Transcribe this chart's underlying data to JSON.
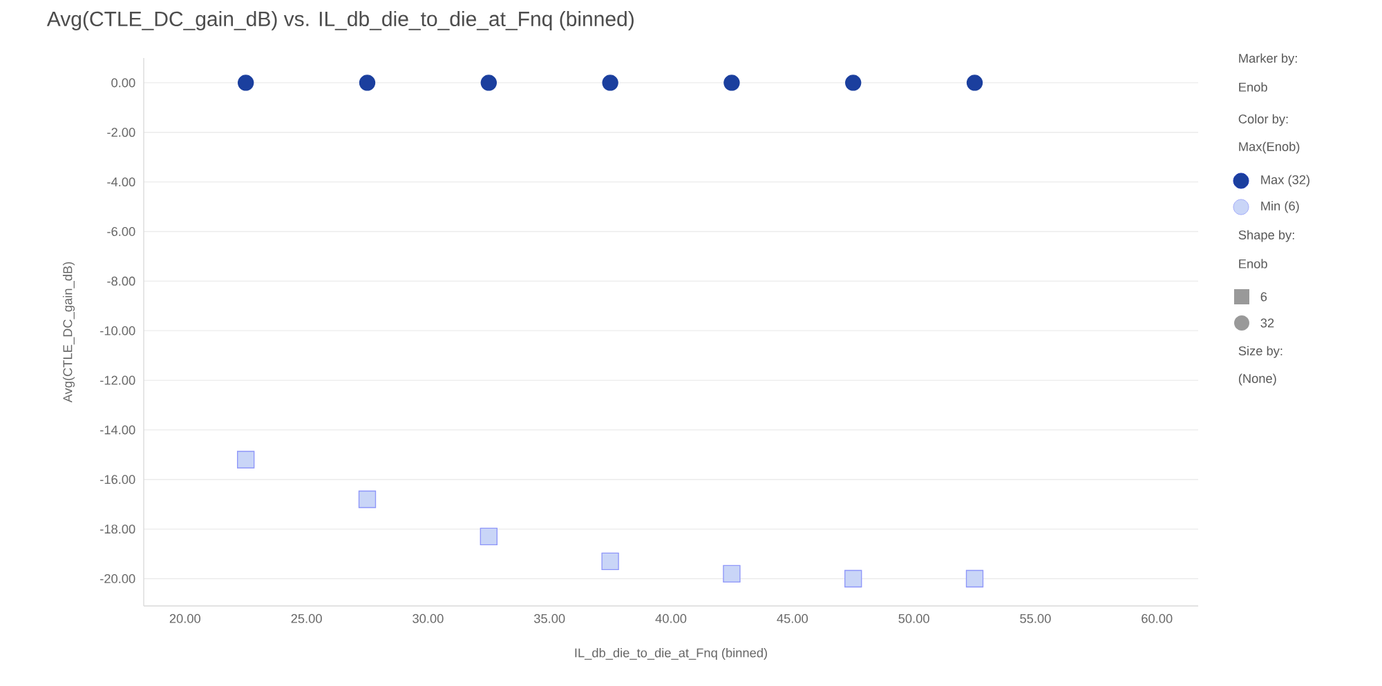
{
  "chart_data": {
    "type": "scatter",
    "title": "Avg(CTLE_DC_gain_dB) vs. IL_db_die_to_die_at_Fnq (binned)",
    "xlabel": "IL_db_die_to_die_at_Fnq (binned)",
    "ylabel": "Avg(CTLE_DC_gain_dB)",
    "x": [
      22.5,
      27.5,
      32.5,
      37.5,
      42.5,
      47.5,
      52.5
    ],
    "series": [
      {
        "name": "Max (32)",
        "color": "#1b3f9e",
        "marker": "circle",
        "values": [
          0,
          0,
          0,
          0,
          0,
          0,
          0
        ]
      },
      {
        "name": "Min (6)",
        "color": "#c9d5f7",
        "marker": "square",
        "values": [
          -15.2,
          -16.8,
          -18.3,
          -19.3,
          -19.8,
          -20.0,
          -20.0
        ]
      }
    ],
    "xlim": [
      18.3,
      61.7
    ],
    "ylim": [
      -21.1,
      1.0
    ],
    "xticks": [
      {
        "value": 20,
        "label": "20.00"
      },
      {
        "value": 25,
        "label": "25.00"
      },
      {
        "value": 30,
        "label": "30.00"
      },
      {
        "value": 35,
        "label": "35.00"
      },
      {
        "value": 40,
        "label": "40.00"
      },
      {
        "value": 45,
        "label": "45.00"
      },
      {
        "value": 50,
        "label": "50.00"
      },
      {
        "value": 55,
        "label": "55.00"
      },
      {
        "value": 60,
        "label": "60.00"
      }
    ],
    "yticks": [
      {
        "value": 0,
        "label": "0.00"
      },
      {
        "value": -2,
        "label": "-2.00"
      },
      {
        "value": -4,
        "label": "-4.00"
      },
      {
        "value": -6,
        "label": "-6.00"
      },
      {
        "value": -8,
        "label": "-8.00"
      },
      {
        "value": -10,
        "label": "-10.00"
      },
      {
        "value": -12,
        "label": "-12.00"
      },
      {
        "value": -14,
        "label": "-14.00"
      },
      {
        "value": -16,
        "label": "-16.00"
      },
      {
        "value": -18,
        "label": "-18.00"
      },
      {
        "value": -20,
        "label": "-20.00"
      }
    ],
    "grid": "y",
    "legend": "right",
    "annotations": [
      "Marker by:",
      "Enob",
      "Color by:",
      "Max(Enob)",
      "Shape by:",
      "Enob",
      "6",
      "32",
      "Size by:",
      "(None)"
    ]
  }
}
